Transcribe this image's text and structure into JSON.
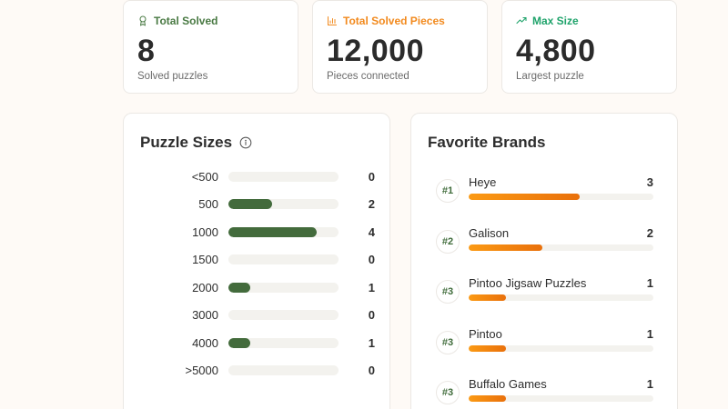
{
  "stats": [
    {
      "title": "Total Solved",
      "icon": "award-icon",
      "value": "8",
      "subtitle": "Solved puzzles",
      "color": "#4a7a44"
    },
    {
      "title": "Total Solved Pieces",
      "icon": "bar-chart-icon",
      "value": "12,000",
      "subtitle": "Pieces connected",
      "color": "#f28a1e"
    },
    {
      "title": "Max Size",
      "icon": "trending-up-icon",
      "value": "4,800",
      "subtitle": "Largest puzzle",
      "color": "#1fa36b"
    }
  ],
  "puzzle_sizes": {
    "title": "Puzzle Sizes",
    "info_icon": "info-icon",
    "max": 5,
    "rows": [
      {
        "label": "<500",
        "count": 0
      },
      {
        "label": "500",
        "count": 2
      },
      {
        "label": "1000",
        "count": 4
      },
      {
        "label": "1500",
        "count": 0
      },
      {
        "label": "2000",
        "count": 1
      },
      {
        "label": "3000",
        "count": 0
      },
      {
        "label": "4000",
        "count": 1
      },
      {
        "label": ">5000",
        "count": 0
      }
    ]
  },
  "favorite_brands": {
    "title": "Favorite Brands",
    "max": 5,
    "rows": [
      {
        "rank": "#1",
        "name": "Heye",
        "count": 3
      },
      {
        "rank": "#2",
        "name": "Galison",
        "count": 2
      },
      {
        "rank": "#3",
        "name": "Pintoo Jigsaw Puzzles",
        "count": 1
      },
      {
        "rank": "#3",
        "name": "Pintoo",
        "count": 1
      },
      {
        "rank": "#3",
        "name": "Buffalo Games",
        "count": 1
      }
    ]
  },
  "colors": {
    "background": "#fefaf6",
    "size_bar": "#436b3c",
    "brand_bar_start": "#fb9a14",
    "brand_bar_end": "#e9700b",
    "track": "#f3f2ee"
  }
}
